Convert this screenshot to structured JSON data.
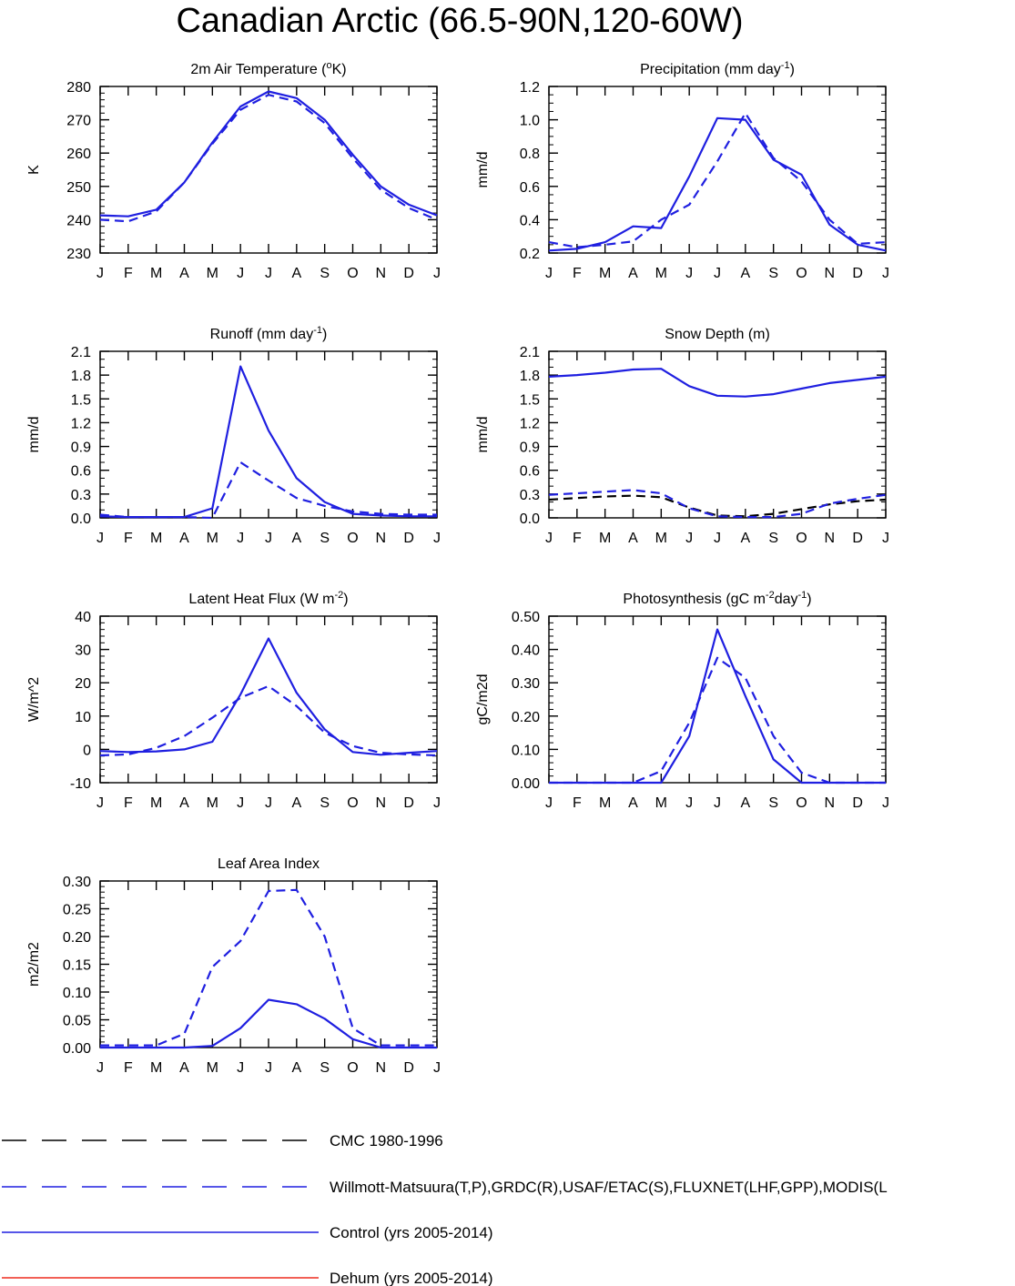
{
  "title": "Canadian Arctic (66.5-90N,120-60W)",
  "month_labels": [
    "J",
    "F",
    "M",
    "A",
    "M",
    "J",
    "J",
    "A",
    "S",
    "O",
    "N",
    "D",
    "J"
  ],
  "colors": {
    "obs_cmc": "#000000",
    "obs": "#1f1fe0",
    "control": "#1f1fe0",
    "dehum": "#ee2b1f"
  },
  "legend": [
    {
      "label": "CMC 1980-1996",
      "color": "#000000",
      "dash": "dashed"
    },
    {
      "label": "Willmott-Matsuura(T,P),GRDC(R),USAF/ETAC(S),FLUXNET(LHF,GPP),MODIS(L",
      "color": "#1f1fe0",
      "dash": "dashed"
    },
    {
      "label": "Control (yrs 2005-2014)",
      "color": "#1f1fe0",
      "dash": "solid"
    },
    {
      "label": "Dehum (yrs 2005-2014)",
      "color": "#ee2b1f",
      "dash": "solid"
    }
  ],
  "chart_data": [
    {
      "type": "line",
      "title": "2m Air Temperature (",
      "title_sup": "o",
      "title_tail": "K)",
      "ylabel": "K",
      "x": [
        "J",
        "F",
        "M",
        "A",
        "M",
        "J",
        "J",
        "A",
        "S",
        "O",
        "N",
        "D",
        "J"
      ],
      "ylim": [
        230,
        280
      ],
      "yticks": [
        230,
        240,
        250,
        260,
        270,
        280
      ],
      "ytick_labels": [
        "230",
        "240",
        "250",
        "260",
        "270",
        "280"
      ],
      "minor_step": 2,
      "series": [
        {
          "name": "Willmott-Matsuura",
          "style": "dashed",
          "color": "#1f1fe0",
          "values": [
            240,
            239.5,
            242.5,
            251.2,
            262.8,
            273,
            277.5,
            275.5,
            269,
            258.5,
            249,
            243.5,
            240
          ]
        },
        {
          "name": "Control",
          "style": "solid",
          "color": "#1f1fe0",
          "values": [
            241.3,
            241,
            243,
            251.2,
            263.2,
            274,
            278.5,
            276.5,
            270,
            259.5,
            250,
            244.5,
            241.3
          ]
        }
      ]
    },
    {
      "type": "line",
      "title": "Precipitation (mm day",
      "title_sup": "-1",
      "title_tail": ")",
      "ylabel": "mm/d",
      "x": [
        "J",
        "F",
        "M",
        "A",
        "M",
        "J",
        "J",
        "A",
        "S",
        "O",
        "N",
        "D",
        "J"
      ],
      "ylim": [
        0.2,
        1.2
      ],
      "yticks": [
        0.2,
        0.4,
        0.6,
        0.8,
        1.0,
        1.2
      ],
      "ytick_labels": [
        "0.2",
        "0.4",
        "0.6",
        "0.8",
        "1.0",
        "1.2"
      ],
      "minor_step": 0.05,
      "series": [
        {
          "name": "Willmott-Matsuura",
          "style": "dashed",
          "color": "#1f1fe0",
          "values": [
            0.265,
            0.235,
            0.25,
            0.27,
            0.4,
            0.49,
            0.75,
            1.04,
            0.77,
            0.63,
            0.4,
            0.255,
            0.265
          ]
        },
        {
          "name": "Control",
          "style": "solid",
          "color": "#1f1fe0",
          "values": [
            0.215,
            0.225,
            0.265,
            0.36,
            0.35,
            0.66,
            1.01,
            1.0,
            0.76,
            0.67,
            0.37,
            0.25,
            0.215
          ]
        }
      ]
    },
    {
      "type": "line",
      "title": "Runoff (mm day",
      "title_sup": "-1",
      "title_tail": ")",
      "ylabel": "mm/d",
      "x": [
        "J",
        "F",
        "M",
        "A",
        "M",
        "J",
        "J",
        "A",
        "S",
        "O",
        "N",
        "D",
        "J"
      ],
      "ylim": [
        0,
        2.1
      ],
      "yticks": [
        0,
        0.3,
        0.6,
        0.9,
        1.2,
        1.5,
        1.8,
        2.1
      ],
      "ytick_labels": [
        "0.0",
        "0.3",
        "0.6",
        "0.9",
        "1.2",
        "1.5",
        "1.8",
        "2.1"
      ],
      "minor_step": 0.1,
      "series": [
        {
          "name": "GRDC",
          "style": "dashed",
          "color": "#1f1fe0",
          "values": [
            0.04,
            0.01,
            0.01,
            0.01,
            0.0,
            0.7,
            0.47,
            0.25,
            0.15,
            0.08,
            0.05,
            0.04,
            0.04
          ]
        },
        {
          "name": "Control",
          "style": "solid",
          "color": "#1f1fe0",
          "values": [
            0.02,
            0.01,
            0.01,
            0.01,
            0.12,
            1.91,
            1.1,
            0.5,
            0.2,
            0.05,
            0.03,
            0.02,
            0.02
          ]
        }
      ]
    },
    {
      "type": "line",
      "title": "Snow Depth (m)",
      "title_sup": "",
      "title_tail": "",
      "ylabel": "mm/d",
      "x": [
        "J",
        "F",
        "M",
        "A",
        "M",
        "J",
        "J",
        "A",
        "S",
        "O",
        "N",
        "D",
        "J"
      ],
      "ylim": [
        0,
        2.1
      ],
      "yticks": [
        0,
        0.3,
        0.6,
        0.9,
        1.2,
        1.5,
        1.8,
        2.1
      ],
      "ytick_labels": [
        "0.0",
        "0.3",
        "0.6",
        "0.9",
        "1.2",
        "1.5",
        "1.8",
        "2.1"
      ],
      "minor_step": 0.1,
      "series": [
        {
          "name": "CMC 1980-1996",
          "style": "dashed",
          "color": "#000000",
          "values": [
            0.23,
            0.25,
            0.27,
            0.28,
            0.26,
            0.13,
            0.03,
            0.02,
            0.05,
            0.11,
            0.17,
            0.21,
            0.23
          ]
        },
        {
          "name": "USAF/ETAC",
          "style": "dashed",
          "color": "#1f1fe0",
          "values": [
            0.29,
            0.31,
            0.33,
            0.35,
            0.31,
            0.12,
            0.02,
            0.01,
            0.01,
            0.05,
            0.18,
            0.24,
            0.29
          ]
        },
        {
          "name": "Control",
          "style": "solid",
          "color": "#1f1fe0",
          "values": [
            1.78,
            1.8,
            1.83,
            1.87,
            1.88,
            1.66,
            1.54,
            1.53,
            1.56,
            1.63,
            1.7,
            1.74,
            1.78
          ]
        }
      ]
    },
    {
      "type": "line",
      "title": "Latent Heat Flux (W m",
      "title_sup": "-2",
      "title_tail": ")",
      "ylabel": "W/m^2",
      "x": [
        "J",
        "F",
        "M",
        "A",
        "M",
        "J",
        "J",
        "A",
        "S",
        "O",
        "N",
        "D",
        "J"
      ],
      "ylim": [
        -10,
        40
      ],
      "yticks": [
        -10,
        0,
        10,
        20,
        30,
        40
      ],
      "ytick_labels": [
        "-10",
        "0",
        "10",
        "20",
        "30",
        "40"
      ],
      "minor_step": 2,
      "series": [
        {
          "name": "FLUXNET",
          "style": "dashed",
          "color": "#1f1fe0",
          "values": [
            -1.8,
            -1.5,
            0.5,
            4,
            9.5,
            15.5,
            19,
            13,
            5,
            1,
            -1,
            -1.5,
            -1.8
          ]
        },
        {
          "name": "Control",
          "style": "solid",
          "color": "#1f1fe0",
          "values": [
            -0.5,
            -0.8,
            -0.6,
            0,
            2.3,
            16.5,
            33.3,
            17,
            6,
            -0.8,
            -1.6,
            -1,
            -0.5
          ]
        }
      ]
    },
    {
      "type": "line",
      "title": "Photosynthesis (gC m",
      "title_sup": "-2",
      "title_tail": "day",
      "title_sup2": "-1",
      "title_tail2": ")",
      "ylabel": "gC/m2d",
      "x": [
        "J",
        "F",
        "M",
        "A",
        "M",
        "J",
        "J",
        "A",
        "S",
        "O",
        "N",
        "D",
        "J"
      ],
      "ylim": [
        0,
        0.5
      ],
      "yticks": [
        0,
        0.1,
        0.2,
        0.3,
        0.4,
        0.5
      ],
      "ytick_labels": [
        "0.00",
        "0.10",
        "0.20",
        "0.30",
        "0.40",
        "0.50"
      ],
      "minor_step": 0.02,
      "series": [
        {
          "name": "FLUXNET",
          "style": "dashed",
          "color": "#1f1fe0",
          "values": [
            0.0,
            0.0,
            0.0,
            0.0,
            0.035,
            0.18,
            0.375,
            0.315,
            0.14,
            0.03,
            0.0,
            0.0,
            0.0
          ]
        },
        {
          "name": "Control",
          "style": "solid",
          "color": "#1f1fe0",
          "values": [
            0.0,
            0.0,
            0.0,
            0.0,
            0.0,
            0.14,
            0.46,
            0.26,
            0.07,
            0.0,
            0.0,
            0.0,
            0.0
          ]
        }
      ]
    },
    {
      "type": "line",
      "title": "Leaf Area Index",
      "title_sup": "",
      "title_tail": "",
      "ylabel": "m2/m2",
      "x": [
        "J",
        "F",
        "M",
        "A",
        "M",
        "J",
        "J",
        "A",
        "S",
        "O",
        "N",
        "D",
        "J"
      ],
      "ylim": [
        0,
        0.3
      ],
      "yticks": [
        0,
        0.05,
        0.1,
        0.15,
        0.2,
        0.25,
        0.3
      ],
      "ytick_labels": [
        "0.00",
        "0.05",
        "0.10",
        "0.15",
        "0.20",
        "0.25",
        "0.30"
      ],
      "minor_step": 0.01,
      "series": [
        {
          "name": "MODIS",
          "style": "dashed",
          "color": "#1f1fe0",
          "values": [
            0.004,
            0.004,
            0.004,
            0.025,
            0.145,
            0.192,
            0.282,
            0.284,
            0.2,
            0.035,
            0.004,
            0.004,
            0.004
          ]
        },
        {
          "name": "Control",
          "style": "solid",
          "color": "#1f1fe0",
          "values": [
            0.0,
            0.0,
            0.0,
            0.0,
            0.003,
            0.035,
            0.086,
            0.078,
            0.052,
            0.015,
            0.0,
            0.0,
            0.0
          ]
        }
      ]
    }
  ]
}
